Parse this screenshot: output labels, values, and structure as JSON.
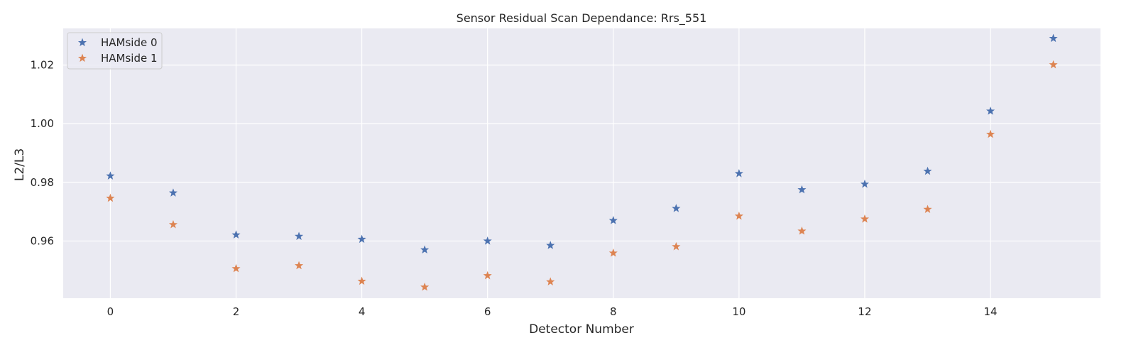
{
  "chart_data": {
    "type": "scatter",
    "title": "Sensor Residual Scan Dependance: Rrs_551",
    "xlabel": "Detector Number",
    "ylabel": "L2/L3",
    "xlim": [
      -0.75,
      15.75
    ],
    "ylim": [
      0.9405,
      1.0325
    ],
    "xticks": [
      0,
      2,
      4,
      6,
      8,
      10,
      12,
      14
    ],
    "yticks": [
      0.96,
      0.98,
      1.0,
      1.02
    ],
    "ytick_labels": [
      "0.96",
      "0.98",
      "1.00",
      "1.02"
    ],
    "grid": true,
    "legend_position": "top-left",
    "marker": "star",
    "x": [
      0,
      1,
      2,
      3,
      4,
      5,
      6,
      7,
      8,
      9,
      10,
      11,
      12,
      13,
      14,
      15
    ],
    "series": [
      {
        "name": "HAMside 0",
        "color": "#4c72b0",
        "values": [
          0.9822,
          0.9764,
          0.9621,
          0.9616,
          0.9606,
          0.957,
          0.96,
          0.9585,
          0.967,
          0.9711,
          0.983,
          0.9775,
          0.9794,
          0.9838,
          1.0043,
          1.0291
        ]
      },
      {
        "name": "HAMside 1",
        "color": "#dd8452",
        "values": [
          0.9746,
          0.9656,
          0.9506,
          0.9516,
          0.9463,
          0.9443,
          0.9482,
          0.9461,
          0.9559,
          0.9581,
          0.9685,
          0.9634,
          0.9675,
          0.9708,
          0.9964,
          1.0201
        ]
      }
    ],
    "background_color": "#eaeaf2",
    "grid_color": "#ffffff"
  }
}
